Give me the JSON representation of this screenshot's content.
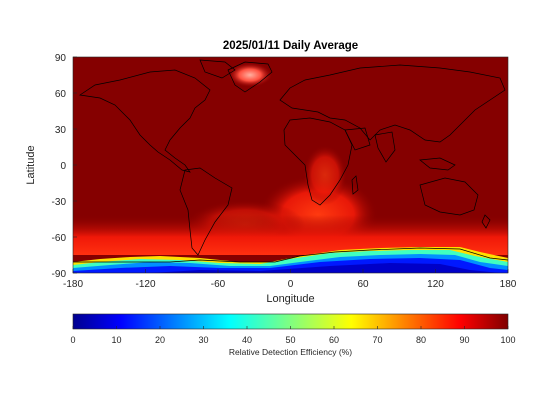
{
  "title": "2025/01/11 Daily Average",
  "axes": {
    "xlabel": "Longitude",
    "ylabel": "Latitude",
    "xticks": [
      "-180",
      "-120",
      "-60",
      "0",
      "60",
      "120",
      "180"
    ],
    "yticks": [
      "90",
      "60",
      "30",
      "0",
      "-30",
      "-60",
      "-90"
    ]
  },
  "colorbar": {
    "label": "Relative Detection Efficiency (%)",
    "ticks": [
      "0",
      "10",
      "20",
      "30",
      "40",
      "50",
      "60",
      "70",
      "80",
      "90",
      "100"
    ],
    "colormap": "jet",
    "range": [
      0,
      100
    ]
  },
  "map": {
    "projection": "equirectangular",
    "lon_range": [
      -180,
      180
    ],
    "lat_range": [
      -90,
      90
    ],
    "background_value_note_colors": {
      "high": "#800000",
      "mid_high": "#ff2a00",
      "low": "#0010ff"
    }
  }
}
